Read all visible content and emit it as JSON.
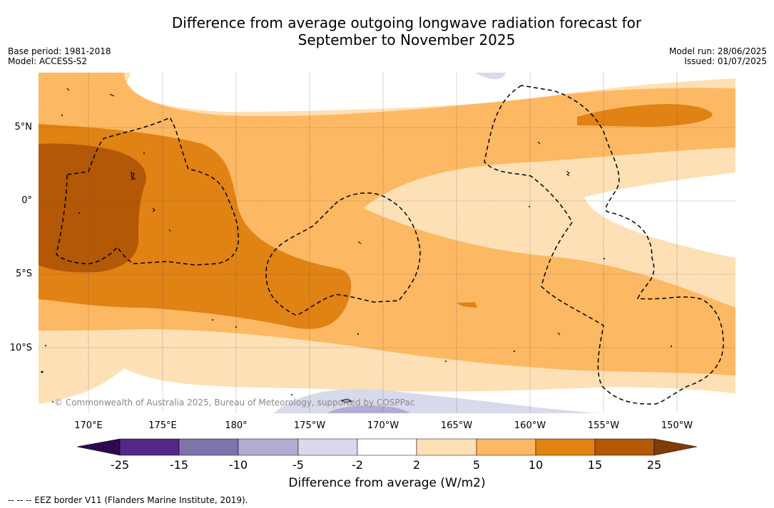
{
  "title_line1": "Difference from average outgoing longwave radiation forecast for",
  "title_line2": "September to November 2025",
  "base_period": "Base period: 1981-2018",
  "model": "Model: ACCESS-S2",
  "model_run": "Model run: 28/06/2025",
  "issued": "Issued: 01/07/2025",
  "copyright": "© Commonwealth of Australia 2025, Bureau of Meteorology, supported by COSPPac",
  "longitude_labels": [
    "170°E",
    "175°E",
    "180°",
    "175°W",
    "170°W",
    "165°W",
    "160°W",
    "155°W",
    "150°W"
  ],
  "latitude_labels": [
    "5°N",
    "0°",
    "5°S",
    "10°S"
  ],
  "colorbar": {
    "title": "Difference from average (W/m2)",
    "ticks": [
      "-25",
      "-15",
      "-10",
      "-5",
      "-2",
      "2",
      "5",
      "10",
      "15",
      "25"
    ],
    "colors": [
      "#2d0a4e",
      "#542788",
      "#8073ac",
      "#b2abd2",
      "#d8daeb",
      "#ffffff",
      "#fee0b6",
      "#fdb863",
      "#e08214",
      "#b35806",
      "#7f3b08"
    ]
  },
  "eez_note": "--  --  -- EEZ border V11 (Flanders Marine Institute, 2019)."
}
